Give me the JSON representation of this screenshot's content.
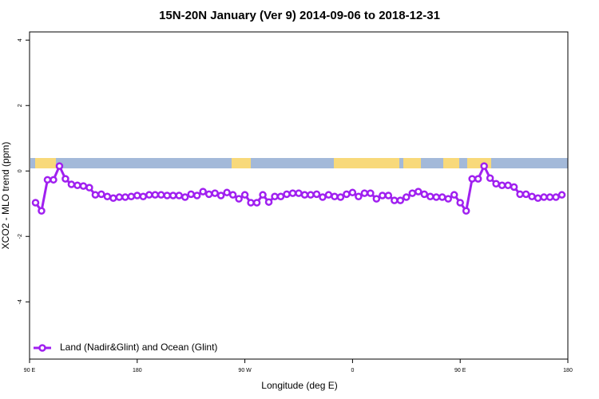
{
  "chart_data": {
    "type": "line",
    "title": "15N-20N January (Ver 9)   2014-09-06 to 2018-12-31",
    "x_label": "Longitude (deg E)",
    "y_label": "XCO2 - MLO trend (ppm)",
    "xlim": [
      90,
      540
    ],
    "ylim": [
      -5.75,
      4.25
    ],
    "xticks": [
      {
        "value": 90,
        "label": "90 E"
      },
      180,
      {
        "value": 270,
        "label": "90 W"
      },
      {
        "value": 360,
        "label": "0"
      },
      {
        "value": 450,
        "label": "90 E"
      },
      {
        "value": 540,
        "label": "180"
      }
    ],
    "yticks": [
      -4,
      -2,
      0,
      2,
      4
    ],
    "legend": "lower left",
    "x": [
      95,
      100,
      105,
      110,
      115,
      120,
      125,
      130,
      135,
      140,
      145,
      150,
      155,
      160,
      165,
      170,
      175,
      180,
      185,
      190,
      195,
      200,
      205,
      210,
      215,
      220,
      225,
      230,
      235,
      240,
      245,
      250,
      255,
      260,
      265,
      270,
      275,
      280,
      285,
      290,
      295,
      300,
      305,
      310,
      315,
      320,
      325,
      330,
      335,
      340,
      345,
      350,
      355,
      360,
      365,
      370,
      375,
      380,
      385,
      390,
      395,
      400,
      405,
      410,
      415,
      420,
      425,
      430,
      435,
      440,
      445,
      450,
      455,
      460,
      465,
      470,
      475,
      480,
      485,
      490,
      495,
      500,
      505,
      510,
      515,
      520,
      525,
      530,
      535
    ],
    "series": [
      {
        "name": "Land (Nadir&Glint) and Ocean (Glint)",
        "color": "#a020f0",
        "values": [
          -0.97,
          -1.22,
          -0.27,
          -0.27,
          0.15,
          -0.24,
          -0.41,
          -0.44,
          -0.46,
          -0.51,
          -0.73,
          -0.71,
          -0.78,
          -0.83,
          -0.8,
          -0.8,
          -0.78,
          -0.75,
          -0.78,
          -0.73,
          -0.73,
          -0.73,
          -0.75,
          -0.75,
          -0.75,
          -0.8,
          -0.71,
          -0.75,
          -0.63,
          -0.71,
          -0.68,
          -0.75,
          -0.66,
          -0.73,
          -0.85,
          -0.73,
          -0.97,
          -0.97,
          -0.73,
          -0.95,
          -0.78,
          -0.78,
          -0.71,
          -0.68,
          -0.68,
          -0.73,
          -0.73,
          -0.71,
          -0.8,
          -0.73,
          -0.78,
          -0.8,
          -0.71,
          -0.66,
          -0.78,
          -0.68,
          -0.68,
          -0.85,
          -0.75,
          -0.75,
          -0.9,
          -0.9,
          -0.8,
          -0.68,
          -0.63,
          -0.71,
          -0.78,
          -0.8,
          -0.8,
          -0.85,
          -0.73,
          -0.97,
          -1.22,
          -0.24,
          -0.24,
          0.15,
          -0.22,
          -0.39,
          -0.44,
          -0.44,
          -0.49,
          -0.71,
          -0.71,
          -0.78,
          -0.83,
          -0.8,
          -0.8,
          -0.8,
          -0.73
        ]
      }
    ]
  }
}
